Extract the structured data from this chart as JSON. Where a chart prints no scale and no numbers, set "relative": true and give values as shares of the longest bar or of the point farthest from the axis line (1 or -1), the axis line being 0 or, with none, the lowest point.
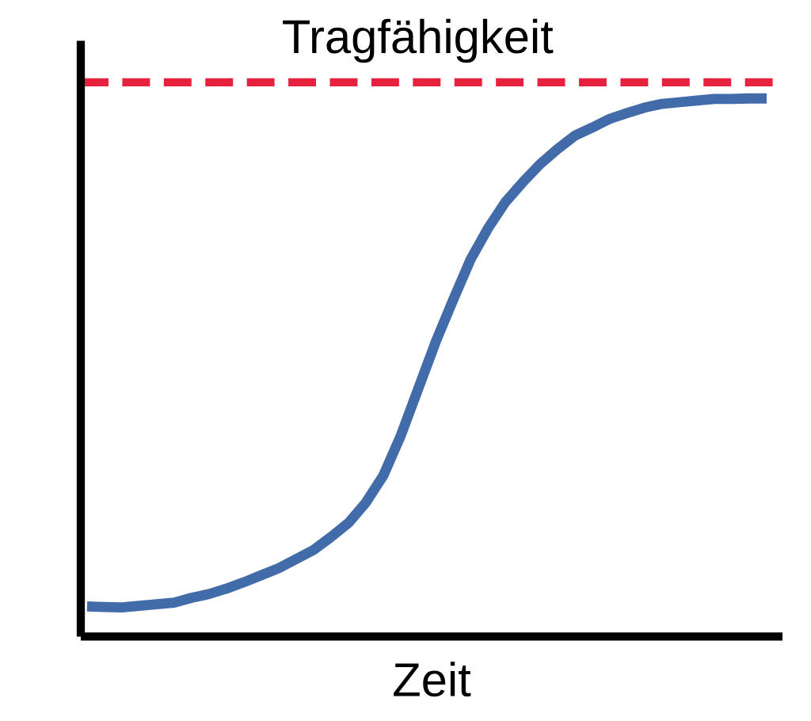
{
  "chart_data": {
    "type": "line",
    "xlabel": "Zeit",
    "relative": true,
    "tick_labels": false,
    "categories": [
      null,
      null,
      null,
      null,
      null,
      null,
      null,
      null,
      null,
      null,
      null,
      null,
      null,
      null,
      null,
      null,
      null,
      null,
      null,
      null,
      null,
      null,
      null,
      null,
      null,
      null,
      null,
      null,
      null,
      null,
      null,
      null,
      null,
      null,
      null,
      null,
      null,
      null,
      null,
      null
    ],
    "series": [
      {
        "color": "#416ba9",
        "values": [
          0.056,
          0.055,
          0.054,
          0.057,
          0.06,
          0.063,
          0.072,
          0.079,
          0.089,
          0.101,
          0.114,
          0.127,
          0.144,
          0.161,
          0.185,
          0.211,
          0.249,
          0.299,
          0.373,
          0.46,
          0.547,
          0.625,
          0.7,
          0.758,
          0.807,
          0.844,
          0.878,
          0.906,
          0.931,
          0.946,
          0.962,
          0.973,
          0.983,
          0.99,
          0.993,
          0.996,
          0.999,
          0.999,
          1.0,
          1.0
        ]
      }
    ],
    "ref_lines": [
      {
        "axis": "y",
        "value": 1.03,
        "label": "Tragfähigkeit",
        "color": "#e6223f",
        "line_style": "dashed"
      }
    ]
  }
}
